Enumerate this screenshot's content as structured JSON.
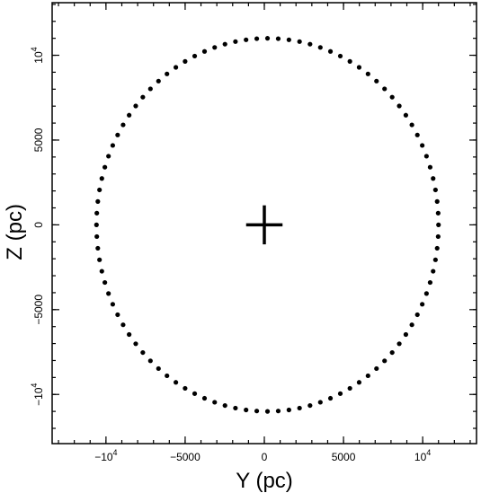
{
  "chart_data": {
    "type": "scatter",
    "xlabel": "Y (pc)",
    "ylabel": "Z (pc)",
    "xlim": [
      -13400,
      13400
    ],
    "ylim": [
      -12900,
      13100
    ],
    "grid": false,
    "x_ticks": [
      {
        "value": -10000,
        "base": "−10",
        "exp": "4"
      },
      {
        "value": -5000,
        "base": "−5000",
        "exp": ""
      },
      {
        "value": 0,
        "base": "0",
        "exp": ""
      },
      {
        "value": 5000,
        "base": "5000",
        "exp": ""
      },
      {
        "value": 10000,
        "base": "10",
        "exp": "4"
      }
    ],
    "y_ticks": [
      {
        "value": 10000,
        "base": "10",
        "exp": "4"
      },
      {
        "value": 5000,
        "base": "5000",
        "exp": ""
      },
      {
        "value": 0,
        "base": "0",
        "exp": ""
      },
      {
        "value": -5000,
        "base": "−5000",
        "exp": ""
      },
      {
        "value": -10000,
        "base": "−10",
        "exp": "4"
      }
    ],
    "minor_step": 1000,
    "series": [
      {
        "marker": "dot",
        "color": "#000000",
        "ring": {
          "center_x": 200,
          "center_y": 0,
          "radius_x": 10800,
          "radius_y": 11000,
          "count": 100
        }
      }
    ],
    "annotations": [
      {
        "marker": "plus",
        "x": 0,
        "y": 0,
        "half_length": 1150
      }
    ]
  }
}
